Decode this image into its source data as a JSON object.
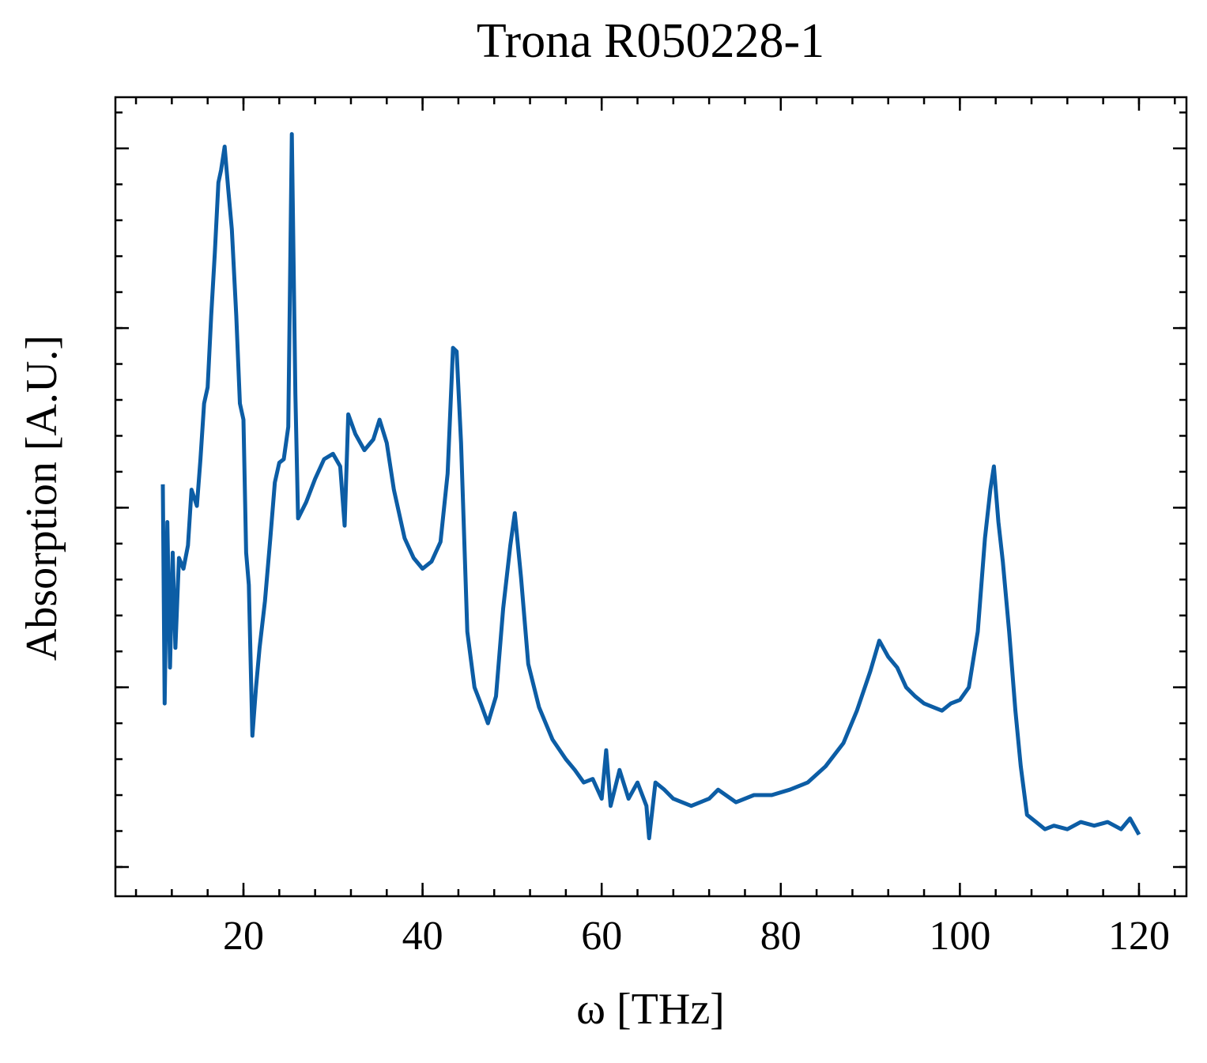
{
  "chart_data": {
    "type": "line",
    "title": "Trona R050228-1",
    "x_label": "ω [THz]",
    "y_label": "Absorption [A.U.]",
    "x": [
      11.0,
      11.2,
      11.5,
      11.8,
      12.1,
      12.4,
      12.8,
      13.3,
      13.8,
      14.2,
      14.8,
      15.2,
      15.6,
      16.0,
      16.4,
      16.8,
      17.2,
      17.5,
      17.9,
      18.3,
      18.7,
      19.2,
      19.6,
      20.0,
      20.3,
      20.6,
      21.0,
      21.4,
      21.8,
      22.4,
      23.0,
      23.5,
      24.0,
      24.5,
      25.0,
      25.4,
      25.8,
      26.1,
      27.0,
      28.0,
      29.0,
      30.0,
      30.8,
      31.3,
      31.7,
      32.5,
      33.5,
      34.5,
      35.2,
      36.0,
      36.8,
      38.0,
      39.0,
      40.0,
      41.0,
      42.0,
      42.8,
      43.4,
      43.8,
      44.3,
      45.0,
      45.8,
      46.5,
      47.3,
      48.2,
      49.0,
      49.8,
      50.3,
      51.0,
      51.8,
      53.0,
      54.5,
      56.0,
      57.0,
      58.0,
      59.0,
      60.0,
      60.5,
      61.0,
      62.0,
      63.0,
      64.0,
      65.0,
      65.3,
      66.0,
      67.0,
      68.0,
      70.0,
      72.0,
      73.0,
      75.0,
      77.0,
      79.0,
      81.0,
      83.0,
      85.0,
      87.0,
      88.5,
      90.0,
      91.0,
      92.0,
      93.0,
      94.0,
      95.0,
      96.0,
      97.0,
      98.0,
      99.0,
      100.0,
      101.0,
      102.0,
      102.8,
      103.4,
      103.8,
      104.3,
      104.8,
      105.5,
      106.2,
      106.8,
      107.5,
      108.5,
      109.5,
      110.5,
      112.0,
      113.5,
      115.0,
      116.5,
      118.0,
      119.0,
      120.0
    ],
    "series": [
      {
        "name": "Trona R050228-1",
        "color": "#0c5da5",
        "values": [
          2.13,
          0.91,
          1.92,
          1.11,
          1.75,
          1.22,
          1.72,
          1.66,
          1.79,
          2.1,
          2.01,
          2.27,
          2.58,
          2.67,
          3.07,
          3.42,
          3.81,
          3.88,
          4.01,
          3.77,
          3.55,
          3.07,
          2.58,
          2.49,
          1.75,
          1.57,
          0.73,
          1.0,
          1.22,
          1.48,
          1.83,
          2.14,
          2.25,
          2.27,
          2.45,
          4.08,
          2.63,
          1.94,
          2.03,
          2.16,
          2.27,
          2.3,
          2.23,
          1.9,
          2.52,
          2.41,
          2.32,
          2.38,
          2.49,
          2.36,
          2.1,
          1.83,
          1.72,
          1.66,
          1.7,
          1.81,
          2.19,
          2.89,
          2.87,
          2.36,
          1.31,
          1.0,
          0.91,
          0.8,
          0.95,
          1.44,
          1.79,
          1.97,
          1.61,
          1.13,
          0.89,
          0.71,
          0.6,
          0.54,
          0.47,
          0.49,
          0.38,
          0.65,
          0.34,
          0.54,
          0.38,
          0.47,
          0.34,
          0.16,
          0.47,
          0.43,
          0.38,
          0.34,
          0.38,
          0.43,
          0.36,
          0.4,
          0.4,
          0.43,
          0.47,
          0.56,
          0.69,
          0.87,
          1.09,
          1.26,
          1.17,
          1.11,
          1.0,
          0.95,
          0.91,
          0.89,
          0.87,
          0.91,
          0.93,
          1.0,
          1.31,
          1.83,
          2.1,
          2.23,
          1.92,
          1.7,
          1.31,
          0.87,
          0.56,
          0.29,
          0.25,
          0.21,
          0.23,
          0.21,
          0.25,
          0.23,
          0.25,
          0.21,
          0.27,
          0.18
        ]
      }
    ],
    "xlim": [
      5.7,
      125.3
    ],
    "xticks": [
      20,
      40,
      60,
      80,
      100,
      120
    ],
    "ylim": [
      -0.163,
      4.285
    ],
    "yticks": [
      0,
      1,
      2,
      3,
      4
    ]
  }
}
